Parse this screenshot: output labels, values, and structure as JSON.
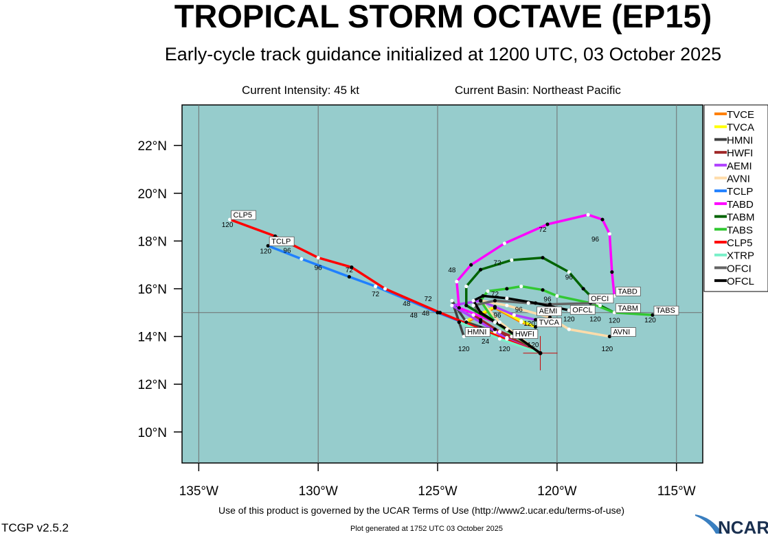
{
  "header": {
    "title": "TROPICAL STORM OCTAVE (EP15)",
    "subtitle": "Early-cycle track guidance initialized at 1200 UTC, 03 October 2025",
    "intensity": "Current Intensity: 45 kt",
    "basin": "Current Basin: Northeast Pacific"
  },
  "footer": {
    "terms": "Use of this product is governed by the UCAR Terms of Use (http://www2.ucar.edu/terms-of-use)",
    "version": "TCGP v2.5.2",
    "generated": "Plot generated at 1752 UTC   03 October 2025",
    "logo": "NCAR"
  },
  "chart_data": {
    "type": "line",
    "title": "TROPICAL STORM OCTAVE (EP15)",
    "xlim": [
      -135.7,
      -113.9
    ],
    "ylim": [
      8.7,
      23.7
    ],
    "xticks": [
      {
        "v": -135,
        "label": "135°W"
      },
      {
        "v": -130,
        "label": "130°W"
      },
      {
        "v": -125,
        "label": "125°W"
      },
      {
        "v": -120,
        "label": "120°W"
      },
      {
        "v": -115,
        "label": "115°W"
      }
    ],
    "yticks": [
      {
        "v": 10,
        "label": "10°N"
      },
      {
        "v": 12,
        "label": "12°N"
      },
      {
        "v": 14,
        "label": "14°N"
      },
      {
        "v": 16,
        "label": "16°N"
      },
      {
        "v": 18,
        "label": "18°N"
      },
      {
        "v": 20,
        "label": "20°N"
      },
      {
        "v": 22,
        "label": "22°N"
      }
    ],
    "grid_lon": [
      -135,
      -130,
      -125,
      -120,
      -115
    ],
    "grid_lat": [
      15
    ],
    "legend_position": "right",
    "initial_position": [
      -120.7,
      13.3
    ],
    "colors": {
      "ocean": "#96cccc",
      "grid": "#6e6e6e",
      "cross": "#cc0000"
    },
    "series": [
      {
        "name": "TVCE",
        "color": "#ff8000",
        "points": [
          [
            -120.7,
            13.3
          ],
          [
            -122.1,
            13.9
          ],
          [
            -123.2,
            14.3
          ],
          [
            -123.8,
            14.6
          ],
          [
            -122.6,
            15.2
          ],
          [
            -121.5,
            14.6
          ],
          [
            -120.9,
            14.4
          ]
        ],
        "end_label": null
      },
      {
        "name": "TVCA",
        "color": "#ffff00",
        "points": [
          [
            -120.7,
            13.3
          ],
          [
            -122.1,
            13.95
          ],
          [
            -123.2,
            14.35
          ],
          [
            -123.8,
            14.65
          ],
          [
            -122.6,
            15.25
          ],
          [
            -121.5,
            14.65
          ],
          [
            -120.9,
            14.4
          ]
        ],
        "end_label": "TVCA"
      },
      {
        "name": "HMNI",
        "color": "#404040",
        "points": [
          [
            -120.7,
            13.3
          ],
          [
            -122.6,
            14.2
          ],
          [
            -123.8,
            14.6
          ],
          [
            -124.4,
            15.5
          ],
          [
            -124.1,
            14.6
          ],
          [
            -123.9,
            14.0
          ]
        ],
        "end_label": "HMNI"
      },
      {
        "name": "HWFI",
        "color": "#a02828",
        "points": [
          [
            -120.7,
            13.3
          ],
          [
            -122.4,
            14.2
          ],
          [
            -123.2,
            14.7
          ],
          [
            -123.5,
            14.9
          ],
          [
            -122.6,
            14.3
          ],
          [
            -121.9,
            14.0
          ]
        ],
        "end_label": "HWFI"
      },
      {
        "name": "AEMI",
        "color": "#b040ff",
        "points": [
          [
            -120.7,
            13.3
          ],
          [
            -122.1,
            13.9
          ],
          [
            -123.2,
            14.6
          ],
          [
            -124.4,
            15.3
          ],
          [
            -123.2,
            15.5
          ],
          [
            -121.8,
            14.9
          ],
          [
            -120.9,
            14.7
          ]
        ],
        "end_label": "AEMI"
      },
      {
        "name": "AVNI",
        "color": "#ffdcaa",
        "points": [
          [
            -120.7,
            13.3
          ],
          [
            -122.4,
            14.6
          ],
          [
            -123.2,
            15.5
          ],
          [
            -122.1,
            15.3
          ],
          [
            -120.3,
            14.8
          ],
          [
            -119.5,
            14.3
          ],
          [
            -117.8,
            14.0
          ]
        ],
        "end_label": "AVNI"
      },
      {
        "name": "TCLP",
        "color": "#2080ff",
        "points": [
          [
            -120.7,
            13.3
          ],
          [
            -123.2,
            14.3
          ],
          [
            -125.0,
            15.0
          ],
          [
            -127.6,
            16.1
          ],
          [
            -128.7,
            16.5
          ],
          [
            -130.7,
            17.25
          ],
          [
            -132.1,
            17.8
          ]
        ],
        "end_label": "TCLP"
      },
      {
        "name": "TABD",
        "color": "#ff00ff",
        "points": [
          [
            -120.7,
            13.3
          ],
          [
            -122.6,
            14.6
          ],
          [
            -124.1,
            15.2
          ],
          [
            -124.2,
            16.3
          ],
          [
            -123.6,
            17.0
          ],
          [
            -122.2,
            17.9
          ],
          [
            -120.4,
            18.7
          ],
          [
            -118.7,
            19.1
          ],
          [
            -118.1,
            18.9
          ],
          [
            -117.8,
            18.3
          ],
          [
            -117.7,
            16.7
          ],
          [
            -117.6,
            15.7
          ]
        ],
        "end_label": "TABD"
      },
      {
        "name": "TABM",
        "color": "#006400",
        "points": [
          [
            -120.7,
            13.3
          ],
          [
            -122.6,
            14.6
          ],
          [
            -123.8,
            15.3
          ],
          [
            -123.8,
            16.1
          ],
          [
            -123.2,
            16.8
          ],
          [
            -121.9,
            17.2
          ],
          [
            -120.6,
            17.3
          ],
          [
            -119.5,
            16.7
          ],
          [
            -118.9,
            16.0
          ],
          [
            -118.2,
            15.3
          ],
          [
            -117.6,
            15.0
          ]
        ],
        "end_label": "TABM"
      },
      {
        "name": "TABS",
        "color": "#32c832",
        "points": [
          [
            -120.7,
            13.3
          ],
          [
            -122.6,
            14.6
          ],
          [
            -123.2,
            15.5
          ],
          [
            -122.9,
            15.9
          ],
          [
            -122.1,
            16.0
          ],
          [
            -121.5,
            16.1
          ],
          [
            -120.6,
            15.95
          ],
          [
            -120.0,
            15.7
          ],
          [
            -118.6,
            15.4
          ],
          [
            -117.6,
            15.0
          ],
          [
            -116.0,
            14.9
          ]
        ],
        "end_label": "TABS"
      },
      {
        "name": "CLP5",
        "color": "#ff0000",
        "points": [
          [
            -120.7,
            13.3
          ],
          [
            -123.2,
            14.3
          ],
          [
            -124.9,
            15.0
          ],
          [
            -127.2,
            16.0
          ],
          [
            -128.6,
            16.9
          ],
          [
            -130.0,
            17.3
          ],
          [
            -131.8,
            18.2
          ],
          [
            -133.7,
            18.9
          ]
        ],
        "end_label": "CLP5"
      },
      {
        "name": "XTRP",
        "color": "#78f0c8",
        "points": [
          [
            -120.7,
            13.3
          ],
          [
            -122.4,
            13.9
          ],
          [
            -124.1,
            14.6
          ]
        ],
        "end_label": null
      },
      {
        "name": "OFCI",
        "color": "#646464",
        "points": [
          [
            -120.7,
            13.3
          ],
          [
            -122.1,
            14.3
          ],
          [
            -123.2,
            15.0
          ],
          [
            -123.5,
            15.3
          ],
          [
            -122.6,
            15.5
          ],
          [
            -121.2,
            15.4
          ],
          [
            -120.3,
            15.35
          ],
          [
            -118.3,
            15.4
          ]
        ],
        "end_label": "OFCI"
      },
      {
        "name": "OFCL",
        "color": "#000000",
        "points": [
          [
            -120.7,
            13.3
          ],
          [
            -122.1,
            14.3
          ],
          [
            -123.2,
            15.0
          ],
          [
            -123.5,
            15.5
          ],
          [
            -123.1,
            15.7
          ],
          [
            -122.1,
            15.6
          ],
          [
            -120.9,
            15.4
          ],
          [
            -119.5,
            15.1
          ]
        ],
        "end_label": "OFCL"
      }
    ],
    "hour_labels": [
      {
        "text": "120",
        "lon": -133.8,
        "lat": 18.7
      },
      {
        "text": "96",
        "lon": -131.3,
        "lat": 17.8
      },
      {
        "text": "120",
        "lon": -132.2,
        "lat": 17.6
      },
      {
        "text": "96",
        "lon": -130.0,
        "lat": 16.9
      },
      {
        "text": "72",
        "lon": -128.7,
        "lat": 16.8
      },
      {
        "text": "72",
        "lon": -127.6,
        "lat": 15.8
      },
      {
        "text": "48",
        "lon": -126.3,
        "lat": 15.4
      },
      {
        "text": "72",
        "lon": -125.4,
        "lat": 15.6
      },
      {
        "text": "48",
        "lon": -126.0,
        "lat": 14.9
      },
      {
        "text": "48",
        "lon": -125.5,
        "lat": 15.0
      },
      {
        "text": "48",
        "lon": -124.4,
        "lat": 16.8
      },
      {
        "text": "72",
        "lon": -122.5,
        "lat": 17.1
      },
      {
        "text": "72",
        "lon": -120.6,
        "lat": 18.5
      },
      {
        "text": "96",
        "lon": -118.4,
        "lat": 18.1
      },
      {
        "text": "96",
        "lon": -119.5,
        "lat": 16.5
      },
      {
        "text": "72",
        "lon": -122.6,
        "lat": 15.8
      },
      {
        "text": "96",
        "lon": -120.4,
        "lat": 15.5
      },
      {
        "text": "96",
        "lon": -121.6,
        "lat": 15.15
      },
      {
        "text": "96",
        "lon": -122.5,
        "lat": 14.9
      },
      {
        "text": "24",
        "lon": -123.0,
        "lat": 13.9
      },
      {
        "text": "120",
        "lon": -123.9,
        "lat": 13.5
      },
      {
        "text": "120",
        "lon": -122.2,
        "lat": 13.5
      },
      {
        "text": "120",
        "lon": -120.9,
        "lat": 14.3
      },
      {
        "text": "120",
        "lon": -121.0,
        "lat": 13.85
      },
      {
        "text": "120",
        "lon": -119.5,
        "lat": 14.75
      },
      {
        "text": "120",
        "lon": -118.4,
        "lat": 15.1
      },
      {
        "text": "120",
        "lon": -117.9,
        "lat": 13.5
      },
      {
        "text": "120",
        "lon": -117.6,
        "lat": 14.6
      },
      {
        "text": "120",
        "lon": -116.1,
        "lat": 14.7
      }
    ]
  }
}
